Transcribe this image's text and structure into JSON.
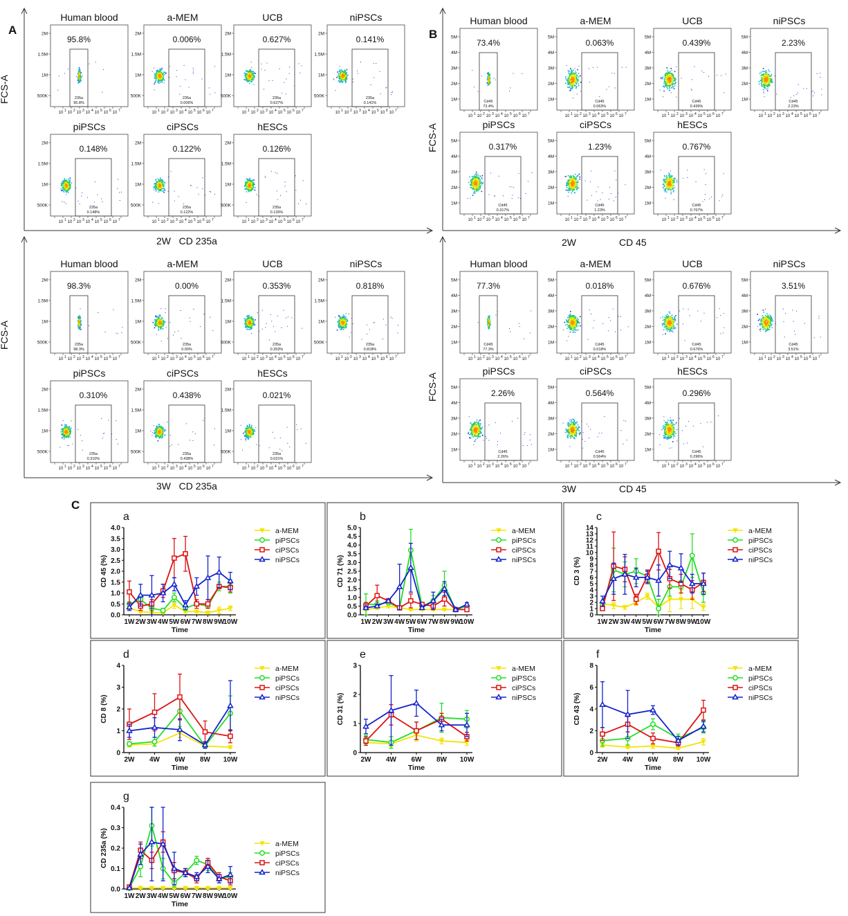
{
  "figure": {
    "panel_A": "A",
    "panel_B": "B",
    "panel_C": "C",
    "y_axis_label": "FCS-A",
    "A_2W_axis": "2W   CD 235a",
    "A_3W_axis": "3W   CD 235a",
    "B_2W_axis_week": "2W",
    "B_2W_axis_marker": "CD 45",
    "B_3W_axis_week": "3W",
    "B_3W_axis_marker": "CD 45",
    "samples": [
      "Human blood",
      "a-MEM",
      "UCB",
      "niPSCs",
      "piPSCs",
      "ciPSCs",
      "hESCs"
    ]
  },
  "flow": {
    "A_2W": {
      "marker": "235a",
      "yticks": [
        "2M",
        "1.5M",
        "1M",
        "500K"
      ],
      "pct": [
        "95.8%",
        "0.006%",
        "0.627%",
        "0.141%",
        "0.148%",
        "0.122%",
        "0.126%"
      ]
    },
    "A_3W": {
      "marker": "235a",
      "yticks": [
        "2M",
        "1.5M",
        "1M",
        "500K"
      ],
      "pct": [
        "98.3%",
        "0.00%",
        "0.353%",
        "0.818%",
        "0.310%",
        "0.438%",
        "0.021%"
      ]
    },
    "B_2W": {
      "marker": "Cd45",
      "yticks": [
        "5M",
        "4M",
        "3M",
        "2M",
        "1M"
      ],
      "pct": [
        "73.4%",
        "0.063%",
        "0.439%",
        "2.23%",
        "0.317%",
        "1.23%",
        "0.767%"
      ]
    },
    "B_3W": {
      "marker": "Cd45",
      "yticks": [
        "5M",
        "4M",
        "3M",
        "2M",
        "1M"
      ],
      "pct": [
        "77.3%",
        "0.018%",
        "0.676%",
        "3.51%",
        "2.26%",
        "0.564%",
        "0.296%"
      ]
    }
  },
  "legend": [
    "a-MEM",
    "piPSCs",
    "ciPSCs",
    "niPSCs"
  ],
  "series_colors": {
    "a-MEM": "#f5e300",
    "piPSCs": "#22dd22",
    "ciPSCs": "#dd1111",
    "niPSCs": "#1122cc"
  },
  "time_label": "Time",
  "chart_data": [
    {
      "id": "a",
      "type": "line",
      "ylabel": "CD 45  (%)",
      "x": [
        "1W",
        "2W",
        "3W",
        "4W",
        "5W",
        "6W",
        "7W",
        "8W",
        "9W",
        "10W"
      ],
      "ylim": [
        0,
        4.0
      ],
      "yticks": [
        "0.0",
        "0.5",
        "1.0",
        "1.5",
        "2.0",
        "2.5",
        "3.0",
        "3.5",
        "4.0"
      ],
      "series": [
        {
          "name": "a-MEM",
          "values": [
            0.3,
            0.15,
            0.1,
            0.1,
            0.45,
            0.15,
            0.15,
            0.1,
            0.2,
            0.3
          ],
          "err": [
            0.05,
            0.05,
            0.05,
            0.05,
            0.15,
            0.05,
            0.05,
            0.05,
            0.15,
            0.1
          ]
        },
        {
          "name": "piPSCs",
          "values": [
            0.5,
            0.7,
            0.3,
            0.2,
            0.8,
            0.3,
            0.5,
            0.4,
            1.3,
            1.3
          ],
          "err": [
            0.1,
            0.2,
            0.1,
            0.1,
            0.2,
            0.1,
            0.1,
            0.1,
            0.2,
            0.3
          ]
        },
        {
          "name": "ciPSCs",
          "values": [
            1.05,
            0.4,
            0.5,
            1.1,
            2.6,
            2.8,
            0.5,
            0.5,
            1.3,
            1.25
          ],
          "err": [
            0.5,
            0.2,
            0.2,
            0.3,
            0.9,
            0.8,
            0.2,
            0.2,
            0.1,
            0.2
          ]
        },
        {
          "name": "niPSCs",
          "values": [
            0.35,
            0.9,
            0.9,
            1.0,
            1.4,
            0.45,
            1.3,
            1.7,
            1.95,
            1.55
          ],
          "err": [
            0.15,
            0.5,
            0.9,
            0.4,
            0.3,
            0.2,
            0.4,
            1.0,
            0.7,
            0.4
          ]
        }
      ]
    },
    {
      "id": "b",
      "type": "line",
      "ylabel": "CD 71  (%)",
      "x": [
        "1W",
        "2W",
        "3W",
        "4W",
        "5W",
        "6W",
        "7W",
        "8W",
        "9W",
        "10W"
      ],
      "ylim": [
        0,
        5.0
      ],
      "yticks": [
        "0.0",
        "0.5",
        "1.0",
        "1.5",
        "2.0",
        "2.5",
        "3.0",
        "3.5",
        "4.0",
        "4.5",
        "5.0"
      ],
      "series": [
        {
          "name": "a-MEM",
          "values": [
            0.3,
            0.4,
            0.5,
            0.4,
            0.3,
            0.3,
            0.3,
            0.3,
            0.3,
            0.3
          ],
          "err": [
            0.05,
            0.1,
            0.1,
            0.05,
            0.05,
            0.05,
            0.05,
            0.05,
            0.05,
            0.05
          ]
        },
        {
          "name": "piPSCs",
          "values": [
            0.6,
            0.6,
            0.7,
            0.4,
            3.7,
            0.5,
            0.8,
            1.7,
            0.3,
            0.5
          ],
          "err": [
            0.6,
            0.2,
            0.1,
            0.1,
            1.2,
            0.1,
            0.3,
            0.8,
            0.1,
            0.1
          ]
        },
        {
          "name": "ciPSCs",
          "values": [
            0.5,
            1.1,
            0.8,
            0.4,
            0.8,
            0.6,
            0.5,
            0.9,
            0.3,
            0.3
          ],
          "err": [
            0.2,
            0.6,
            0.1,
            0.1,
            0.4,
            0.1,
            0.2,
            0.4,
            0.1,
            0.1
          ]
        },
        {
          "name": "niPSCs",
          "values": [
            0.4,
            0.5,
            0.8,
            1.6,
            2.7,
            0.4,
            0.8,
            1.5,
            0.3,
            0.6
          ],
          "err": [
            0.1,
            0.1,
            0.1,
            1.3,
            1.4,
            0.1,
            0.5,
            0.4,
            0.1,
            0.1
          ]
        }
      ]
    },
    {
      "id": "c",
      "type": "line",
      "ylabel": "CD 3  (%)",
      "x": [
        "1W",
        "2W",
        "3W",
        "4W",
        "5W",
        "6W",
        "7W",
        "8W",
        "9W",
        "10W"
      ],
      "ylim": [
        0,
        14
      ],
      "yticks": [
        "0",
        "1",
        "2",
        "3",
        "4",
        "5",
        "6",
        "7",
        "8",
        "9",
        "10",
        "11",
        "12",
        "13",
        "14"
      ],
      "series": [
        {
          "name": "a-MEM",
          "values": [
            1.8,
            1.5,
            1.2,
            2.0,
            3.0,
            1.2,
            2.5,
            2.5,
            2.5,
            1.2
          ],
          "err": [
            0.3,
            0.5,
            0.3,
            0.5,
            0.5,
            0.5,
            2.0,
            1.5,
            1.5,
            0.5
          ]
        },
        {
          "name": "piPSCs",
          "values": [
            1.5,
            7.2,
            6.5,
            7.0,
            6.2,
            1.0,
            4.5,
            4.5,
            9.5,
            3.5
          ],
          "err": [
            0.5,
            3.5,
            2.0,
            2.0,
            1.0,
            1.5,
            1.5,
            1.0,
            3.5,
            1.5
          ]
        },
        {
          "name": "ciPSCs",
          "values": [
            1.0,
            7.8,
            7.3,
            2.5,
            6.2,
            10.2,
            5.8,
            5.0,
            4.0,
            5.2
          ],
          "err": [
            0.3,
            5.5,
            2.0,
            0.8,
            1.0,
            3.0,
            1.5,
            1.5,
            1.5,
            1.5
          ]
        },
        {
          "name": "niPSCs",
          "values": [
            2.2,
            5.8,
            6.5,
            6.0,
            6.0,
            5.5,
            8.0,
            7.5,
            5.0,
            5.0
          ],
          "err": [
            0.8,
            2.5,
            3.2,
            1.5,
            1.0,
            2.5,
            2.2,
            2.3,
            1.5,
            1.7
          ]
        }
      ]
    },
    {
      "id": "d",
      "type": "line",
      "ylabel": "CD 8  (%)",
      "x": [
        "2W",
        "4W",
        "6W",
        "8W",
        "10W"
      ],
      "ylim": [
        0,
        4
      ],
      "yticks": [
        "0",
        "1",
        "2",
        "3",
        "4"
      ],
      "series": [
        {
          "name": "a-MEM",
          "values": [
            0.35,
            0.4,
            0.9,
            0.3,
            0.25
          ],
          "err": [
            0.1,
            0.1,
            0.2,
            0.1,
            0.05
          ]
        },
        {
          "name": "piPSCs",
          "values": [
            0.4,
            0.5,
            1.9,
            0.3,
            1.8
          ],
          "err": [
            0.1,
            0.2,
            0.7,
            0.1,
            0.8
          ]
        },
        {
          "name": "ciPSCs",
          "values": [
            1.3,
            1.85,
            2.55,
            0.95,
            0.75
          ],
          "err": [
            0.7,
            0.85,
            1.05,
            0.5,
            0.3
          ]
        },
        {
          "name": "niPSCs",
          "values": [
            1.0,
            1.15,
            1.05,
            0.35,
            2.15
          ],
          "err": [
            0.3,
            0.45,
            0.5,
            0.15,
            1.15
          ]
        }
      ]
    },
    {
      "id": "e",
      "type": "line",
      "ylabel": "CD 31  (%)",
      "x": [
        "2W",
        "4W",
        "6W",
        "8W",
        "10W"
      ],
      "ylim": [
        0,
        3
      ],
      "yticks": [
        "0",
        "1",
        "2",
        "3"
      ],
      "series": [
        {
          "name": "a-MEM",
          "values": [
            0.35,
            0.3,
            0.6,
            0.4,
            0.35
          ],
          "err": [
            0.1,
            0.1,
            0.2,
            0.1,
            0.1
          ]
        },
        {
          "name": "piPSCs",
          "values": [
            0.45,
            0.35,
            0.75,
            1.2,
            1.15
          ],
          "err": [
            0.15,
            0.2,
            0.3,
            0.5,
            0.3
          ]
        },
        {
          "name": "ciPSCs",
          "values": [
            0.4,
            1.3,
            0.75,
            1.15,
            0.55
          ],
          "err": [
            0.15,
            0.35,
            0.3,
            0.2,
            0.15
          ]
        },
        {
          "name": "niPSCs",
          "values": [
            0.9,
            1.45,
            1.7,
            0.95,
            0.95
          ],
          "err": [
            0.25,
            1.2,
            0.45,
            0.2,
            0.4
          ]
        }
      ]
    },
    {
      "id": "f",
      "type": "line",
      "ylabel": "CD 43  (%)",
      "x": [
        "2W",
        "4W",
        "6W",
        "8W",
        "10W"
      ],
      "ylim": [
        0,
        8
      ],
      "yticks": [
        "0",
        "2",
        "4",
        "6",
        "8"
      ],
      "series": [
        {
          "name": "a-MEM",
          "values": [
            0.7,
            0.5,
            0.6,
            0.4,
            1.0
          ],
          "err": [
            0.2,
            0.1,
            0.2,
            0.1,
            0.3
          ]
        },
        {
          "name": "piPSCs",
          "values": [
            1.1,
            1.3,
            2.6,
            1.3,
            2.3
          ],
          "err": [
            0.5,
            0.6,
            0.5,
            0.4,
            0.5
          ]
        },
        {
          "name": "ciPSCs",
          "values": [
            1.7,
            2.6,
            1.3,
            0.9,
            3.9
          ],
          "err": [
            0.6,
            0.7,
            0.5,
            0.3,
            0.9
          ]
        },
        {
          "name": "niPSCs",
          "values": [
            4.4,
            3.5,
            3.9,
            1.1,
            2.4
          ],
          "err": [
            2.1,
            2.2,
            0.4,
            0.4,
            0.5
          ]
        }
      ]
    },
    {
      "id": "g",
      "type": "line",
      "ylabel": "CD 235a  (%)",
      "x": [
        "1W",
        "2W",
        "3W",
        "4W",
        "5W",
        "6W",
        "7W",
        "8W",
        "9W",
        "10W"
      ],
      "ylim": [
        0,
        0.4
      ],
      "yticks": [
        "0.0",
        "0.1",
        "0.2",
        "0.3",
        "0.4"
      ],
      "series": [
        {
          "name": "a-MEM",
          "values": [
            0.005,
            0.005,
            0.005,
            0.005,
            0.005,
            0.005,
            0.005,
            0.005,
            0.005,
            0.005
          ],
          "err": [
            0.003,
            0.003,
            0.003,
            0.003,
            0.003,
            0.003,
            0.003,
            0.003,
            0.003,
            0.003
          ]
        },
        {
          "name": "piPSCs",
          "values": [
            0.005,
            0.11,
            0.31,
            0.1,
            0.03,
            0.08,
            0.14,
            0.12,
            0.05,
            0.06
          ],
          "err": [
            0.003,
            0.05,
            0.1,
            0.05,
            0.02,
            0.02,
            0.02,
            0.03,
            0.02,
            0.02
          ]
        },
        {
          "name": "ciPSCs",
          "values": [
            0.01,
            0.19,
            0.14,
            0.23,
            0.09,
            0.08,
            0.05,
            0.13,
            0.06,
            0.04
          ],
          "err": [
            0.005,
            0.04,
            0.04,
            0.05,
            0.04,
            0.02,
            0.02,
            0.02,
            0.02,
            0.02
          ]
        },
        {
          "name": "niPSCs",
          "values": [
            0.005,
            0.17,
            0.23,
            0.22,
            0.1,
            0.08,
            0.06,
            0.11,
            0.05,
            0.07
          ],
          "err": [
            0.003,
            0.05,
            0.19,
            0.18,
            0.08,
            0.02,
            0.02,
            0.03,
            0.02,
            0.04
          ]
        }
      ]
    }
  ]
}
